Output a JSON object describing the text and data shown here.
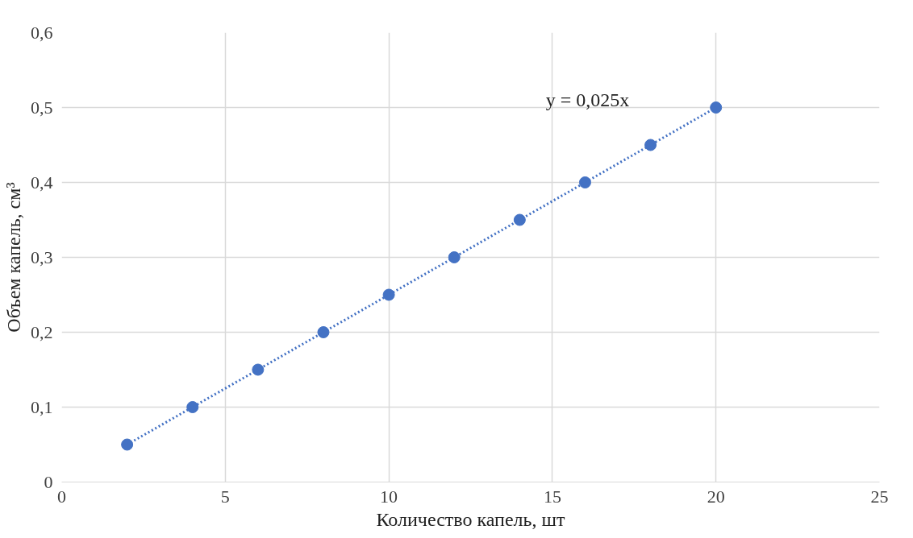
{
  "chart_data": {
    "type": "scatter",
    "xlabel": "Количество капель, шт",
    "ylabel": "Объем капель, см³",
    "x": [
      2,
      4,
      6,
      8,
      10,
      12,
      14,
      16,
      18,
      20
    ],
    "series": [
      {
        "color": "#4472c4",
        "marker": "circle",
        "values": [
          0.05,
          0.1,
          0.15,
          0.2,
          0.25,
          0.3,
          0.35,
          0.4,
          0.45,
          0.5
        ]
      },
      {
        "type": "line",
        "color": "#4472c4",
        "line_style": "dotted",
        "marker": "none",
        "x": [
          2,
          20
        ],
        "values": [
          0.05,
          0.5
        ]
      }
    ],
    "annotations": [
      "y = 0,025x"
    ],
    "xlim": [
      0,
      25
    ],
    "xticks": [
      0,
      5,
      10,
      15,
      20,
      25
    ],
    "ylim": [
      0,
      0.6
    ],
    "yticks": [
      {
        "value": 0,
        "label": "0"
      },
      {
        "value": 0.1,
        "label": "0,1"
      },
      {
        "value": 0.2,
        "label": "0,2"
      },
      {
        "value": 0.3,
        "label": "0,3"
      },
      {
        "value": 0.4,
        "label": "0,4"
      },
      {
        "value": 0.5,
        "label": "0,5"
      },
      {
        "value": 0.6,
        "label": "0,6"
      }
    ],
    "grid": true
  }
}
